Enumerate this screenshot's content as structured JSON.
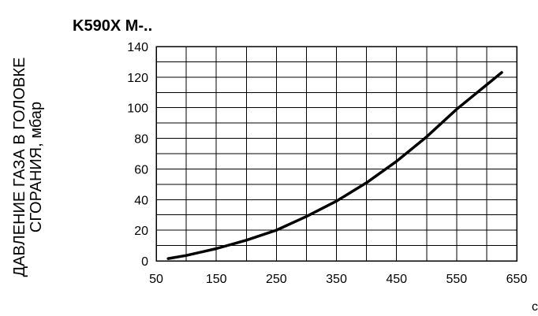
{
  "chart_data": {
    "type": "line",
    "title": "K590X M-..",
    "ylabel": [
      "ДАВЛЕНИЕ ГАЗА В ГОЛОВКЕ",
      "СГОРАНИЯ, мбар"
    ],
    "xlabel": "c",
    "xlim": [
      50,
      650
    ],
    "ylim": [
      0,
      140
    ],
    "x_ticks": [
      50,
      150,
      250,
      350,
      450,
      550,
      650
    ],
    "y_ticks": [
      0,
      20,
      40,
      60,
      80,
      100,
      120,
      140
    ],
    "x_grid_step": 50,
    "y_grid_step": 10,
    "grid": true,
    "legend": "none",
    "series": [
      {
        "color": "#000000",
        "x": [
          70,
          100,
          150,
          200,
          250,
          300,
          350,
          400,
          450,
          500,
          550,
          600,
          625
        ],
        "y": [
          1.5,
          3.5,
          8,
          13.5,
          20,
          29,
          39,
          51,
          65,
          81,
          99,
          115,
          123
        ]
      }
    ]
  }
}
